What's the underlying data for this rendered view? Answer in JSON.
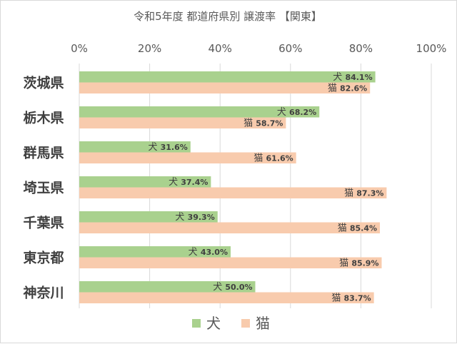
{
  "chart_data": {
    "type": "bar",
    "orientation": "horizontal",
    "title": "令和5年度 都道府県別 譲渡率 【関東】",
    "categories": [
      "茨城県",
      "栃木県",
      "群馬県",
      "埼玉県",
      "千葉県",
      "東京都",
      "神奈川"
    ],
    "series": [
      {
        "name": "犬",
        "color": "#a9d18e",
        "values": [
          84.1,
          68.2,
          31.6,
          37.4,
          39.3,
          43.0,
          50.0
        ],
        "labels": [
          "84.1%",
          "68.2%",
          "31.6%",
          "37.4%",
          "39.3%",
          "43.0%",
          "50.0%"
        ]
      },
      {
        "name": "猫",
        "color": "#f8cbad",
        "values": [
          82.6,
          58.7,
          61.6,
          87.3,
          85.4,
          85.9,
          83.7
        ],
        "labels": [
          "82.6%",
          "58.7%",
          "61.6%",
          "87.3%",
          "85.4%",
          "85.9%",
          "83.7%"
        ]
      }
    ],
    "xaxis": {
      "position": "top",
      "range": [
        0,
        100
      ],
      "ticks": [
        "0%",
        "20%",
        "40%",
        "60%",
        "80%",
        "100%"
      ],
      "tick_values": [
        0,
        20,
        40,
        60,
        80,
        100
      ]
    },
    "grid": true,
    "legend": {
      "position": "bottom",
      "entries": [
        "犬",
        "猫"
      ]
    }
  }
}
